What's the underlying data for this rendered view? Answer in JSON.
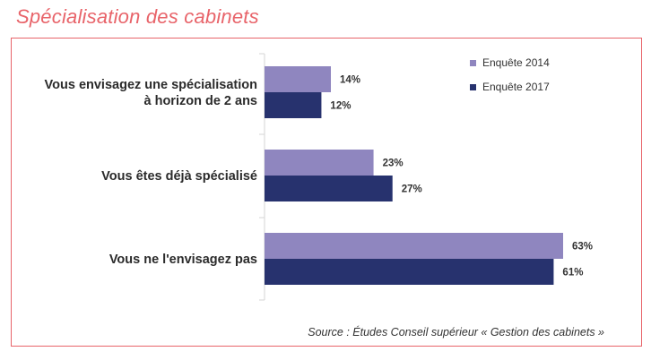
{
  "title": "Spécialisation des cabinets",
  "source": "Source : Études Conseil supérieur « Gestion des cabinets »",
  "chart_data": {
    "type": "bar",
    "orientation": "horizontal",
    "categories": [
      [
        "Vous envisagez une spécialisation",
        "à horizon de 2 ans"
      ],
      [
        "Vous êtes déjà spécialisé"
      ],
      [
        "Vous ne l'envisagez pas"
      ]
    ],
    "series": [
      {
        "name": "Enquête 2014",
        "values": [
          14,
          23,
          63
        ],
        "labels": [
          "14%",
          "23%",
          "63%"
        ],
        "color": "#8f86bf"
      },
      {
        "name": "Enquête 2017",
        "values": [
          12,
          27,
          61
        ],
        "labels": [
          "12%",
          "27%",
          "61%"
        ],
        "color": "#27326e"
      }
    ],
    "xlim": [
      0,
      70
    ],
    "unit": "%",
    "legend": "top-right",
    "grid": false
  }
}
